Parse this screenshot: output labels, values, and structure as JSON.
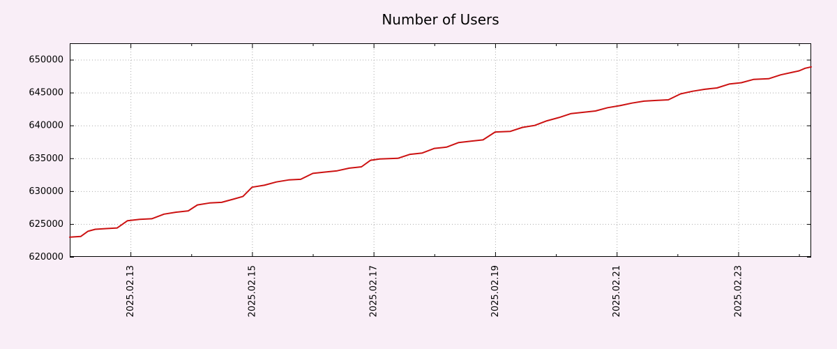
{
  "title": "Number of Users",
  "colors": {
    "background": "#f9eef7",
    "plot_background": "#ffffff",
    "line": "#cc1111",
    "grid": "#a9a9a9",
    "axis": "#000000",
    "text": "#000000"
  },
  "chart_data": {
    "type": "line",
    "title": "Number of Users",
    "xlabel": "",
    "ylabel": "",
    "grid": true,
    "legend": false,
    "ylim": [
      620000,
      652500
    ],
    "xlim_days": [
      0,
      12.2
    ],
    "y_ticks": [
      620000,
      625000,
      630000,
      635000,
      640000,
      645000,
      650000
    ],
    "y_tick_labels": [
      "620000",
      "625000",
      "630000",
      "635000",
      "640000",
      "645000",
      "650000"
    ],
    "x_ticks": [
      {
        "label": "2025.02.13",
        "day": 1
      },
      {
        "label": "2025.02.15",
        "day": 3
      },
      {
        "label": "2025.02.17",
        "day": 5
      },
      {
        "label": "2025.02.19",
        "day": 7
      },
      {
        "label": "2025.02.21",
        "day": 9
      },
      {
        "label": "2025.02.23",
        "day": 11
      }
    ],
    "x_minor_tick_days": [
      0,
      1,
      2,
      3,
      4,
      5,
      6,
      7,
      8,
      9,
      10,
      11,
      12
    ],
    "series": [
      {
        "name": "Number of Users",
        "color": "#cc1111",
        "point_format": "[day_offset_from_2025.02.12, users]",
        "points": [
          [
            0.0,
            623000
          ],
          [
            0.18,
            623100
          ],
          [
            0.3,
            623900
          ],
          [
            0.42,
            624200
          ],
          [
            0.6,
            624300
          ],
          [
            0.78,
            624400
          ],
          [
            0.95,
            625500
          ],
          [
            1.15,
            625700
          ],
          [
            1.35,
            625800
          ],
          [
            1.55,
            626500
          ],
          [
            1.75,
            626800
          ],
          [
            1.95,
            627000
          ],
          [
            2.1,
            627900
          ],
          [
            2.3,
            628200
          ],
          [
            2.5,
            628300
          ],
          [
            2.7,
            628800
          ],
          [
            2.85,
            629200
          ],
          [
            3.0,
            630600
          ],
          [
            3.2,
            630900
          ],
          [
            3.4,
            631400
          ],
          [
            3.6,
            631700
          ],
          [
            3.8,
            631800
          ],
          [
            4.0,
            632700
          ],
          [
            4.2,
            632900
          ],
          [
            4.4,
            633100
          ],
          [
            4.6,
            633500
          ],
          [
            4.8,
            633700
          ],
          [
            4.95,
            634700
          ],
          [
            5.1,
            634900
          ],
          [
            5.4,
            635000
          ],
          [
            5.6,
            635600
          ],
          [
            5.8,
            635800
          ],
          [
            6.0,
            636500
          ],
          [
            6.2,
            636700
          ],
          [
            6.4,
            637400
          ],
          [
            6.6,
            637600
          ],
          [
            6.8,
            637800
          ],
          [
            7.0,
            639000
          ],
          [
            7.25,
            639100
          ],
          [
            7.45,
            639700
          ],
          [
            7.65,
            640000
          ],
          [
            7.85,
            640700
          ],
          [
            8.05,
            641200
          ],
          [
            8.25,
            641800
          ],
          [
            8.45,
            642000
          ],
          [
            8.65,
            642200
          ],
          [
            8.85,
            642700
          ],
          [
            9.05,
            643000
          ],
          [
            9.25,
            643400
          ],
          [
            9.45,
            643700
          ],
          [
            9.65,
            643800
          ],
          [
            9.85,
            643900
          ],
          [
            10.05,
            644800
          ],
          [
            10.25,
            645200
          ],
          [
            10.45,
            645500
          ],
          [
            10.65,
            645700
          ],
          [
            10.85,
            646300
          ],
          [
            11.05,
            646500
          ],
          [
            11.25,
            647000
          ],
          [
            11.5,
            647100
          ],
          [
            11.7,
            647700
          ],
          [
            11.9,
            648100
          ],
          [
            12.0,
            648300
          ],
          [
            12.1,
            648700
          ],
          [
            12.2,
            648900
          ]
        ]
      }
    ]
  }
}
